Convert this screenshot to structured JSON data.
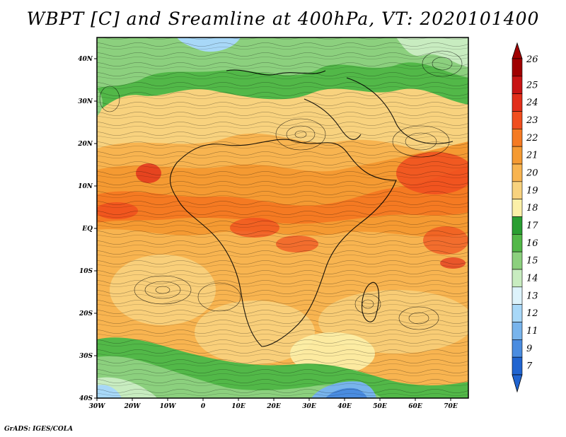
{
  "title": "WBPT [C] and Sreamline at 400hPa, VT: 2020101400",
  "credit": "GrADS: IGES/COLA",
  "map": {
    "lat_labels": [
      "40N",
      "30N",
      "20N",
      "10N",
      "EQ",
      "10S",
      "20S",
      "30S",
      "40S"
    ],
    "lat_values": [
      40,
      30,
      20,
      10,
      0,
      -10,
      -20,
      -30,
      -40
    ],
    "lon_labels": [
      "30W",
      "20W",
      "10W",
      "0",
      "10E",
      "20E",
      "30E",
      "40E",
      "50E",
      "60E",
      "70E"
    ],
    "lon_values": [
      -30,
      -20,
      -10,
      0,
      10,
      20,
      30,
      40,
      50,
      60,
      70
    ],
    "lon_range": [
      -30,
      75
    ],
    "lat_range": [
      -40,
      45
    ]
  },
  "colorbar": {
    "labels": [
      "26",
      "25",
      "24",
      "23",
      "22",
      "21",
      "20",
      "19",
      "18",
      "17",
      "16",
      "15",
      "14",
      "13",
      "12",
      "11",
      "9",
      "7"
    ],
    "colors": [
      "#a00000",
      "#c81414",
      "#e22e1a",
      "#f04e1e",
      "#f57a22",
      "#f59a32",
      "#f8b450",
      "#f8d27e",
      "#fcf0a8",
      "#2a9e32",
      "#52b848",
      "#8cd07e",
      "#c8ecc0",
      "#ddf3fb",
      "#a8d8f8",
      "#78b4ec",
      "#4a8ce0",
      "#2064d0"
    ]
  }
}
